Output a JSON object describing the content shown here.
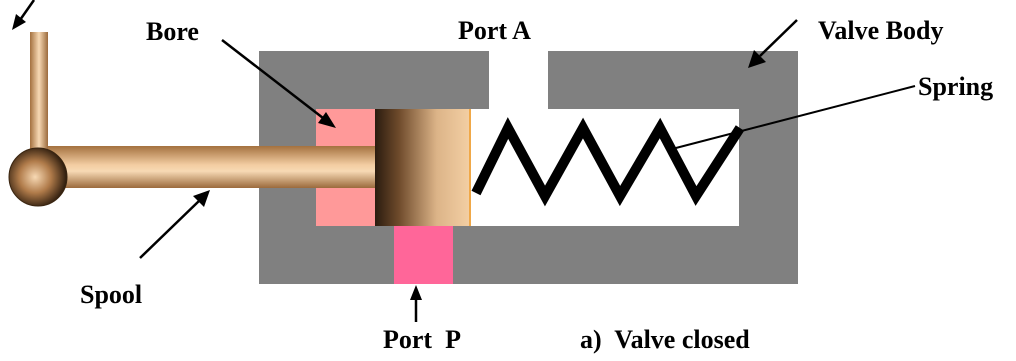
{
  "labels": {
    "bore": "Bore",
    "port_a": "Port A",
    "valve_body": "Valve Body",
    "spring": "Spring",
    "spool": "Spool",
    "port_p": "Port  P",
    "caption": "a)  Valve closed"
  },
  "colors": {
    "valve_body": "#808080",
    "bore": "#FF9999",
    "port_p": "#FF6699",
    "port_a": "#FFFFFF",
    "spool_metal": "#E8B98A",
    "spring": "#000000"
  },
  "state": "closed"
}
